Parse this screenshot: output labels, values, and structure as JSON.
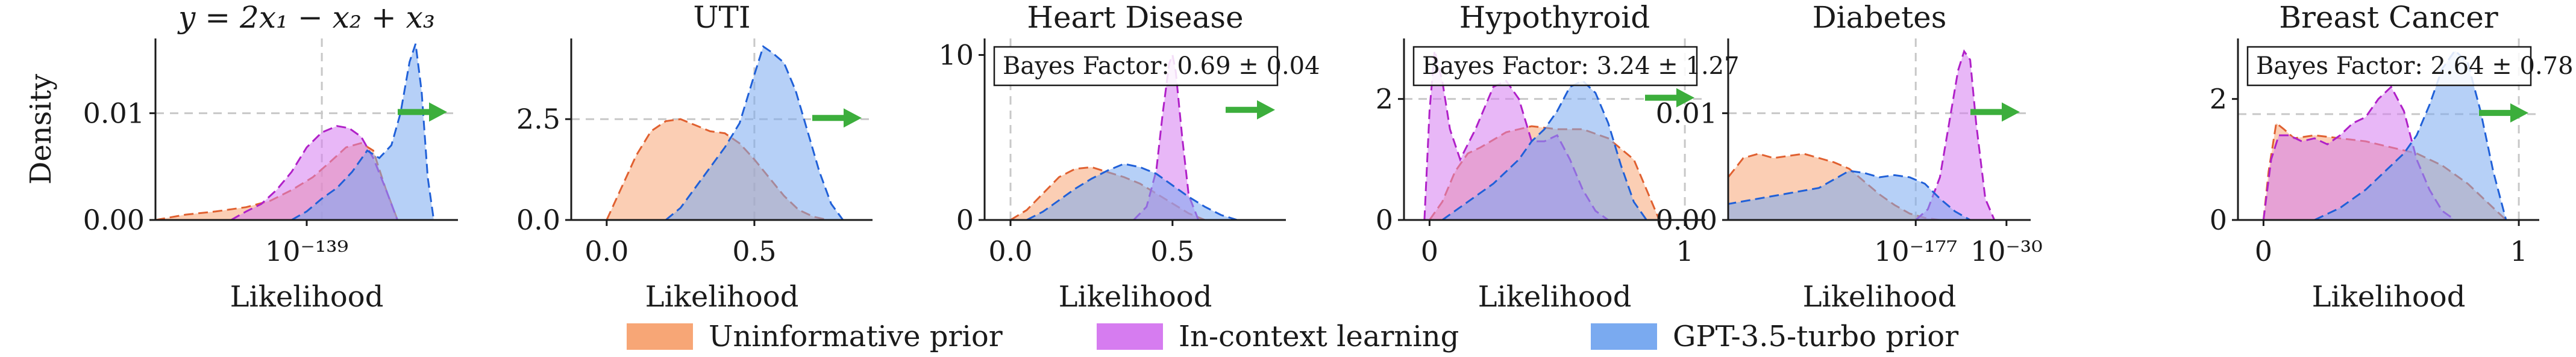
{
  "legend": {
    "placement": "bottom-center",
    "items": [
      {
        "name": "Uninformative prior",
        "color": "#f7a676"
      },
      {
        "name": "In-context learning",
        "color": "#d67cf0"
      },
      {
        "name": "GPT-3.5-turbo prior",
        "color": "#7aaaf0"
      }
    ]
  },
  "colors": {
    "uninformative": "#f7a676",
    "uninformative_line": "#e06030",
    "icl": "#d67cf0",
    "icl_line": "#b020c8",
    "gpt": "#7aaaf0",
    "gpt_line": "#2060d8",
    "arrow": "#3cae3c",
    "grid": "#c8c8c8"
  },
  "chart_data": [
    {
      "type": "area",
      "title": "y = 2x₁ − x₂ + x₃",
      "xlabel": "Likelihood",
      "ylabel": "Density",
      "x_scale": "log",
      "xlim": [
        0,
        1
      ],
      "ylim": [
        0,
        0.017
      ],
      "xticks": [
        {
          "value": 0.5,
          "label": "10⁻¹³⁹"
        }
      ],
      "yticks": [
        {
          "value": 0,
          "label": "0.00"
        },
        {
          "value": 0.01,
          "label": "0.01"
        }
      ],
      "reference_lines": {
        "x": 0.55,
        "y": 0.01
      },
      "arrow": "right",
      "bayes_factor": null,
      "series": [
        {
          "name": "Uninformative prior",
          "x": [
            0,
            0.1,
            0.2,
            0.3,
            0.38,
            0.45,
            0.52,
            0.58,
            0.63,
            0.68,
            0.72,
            0.76,
            0.8
          ],
          "y": [
            0,
            0.0005,
            0.0008,
            0.0012,
            0.0018,
            0.0028,
            0.004,
            0.0055,
            0.0068,
            0.0072,
            0.0065,
            0.003,
            0
          ]
        },
        {
          "name": "In-context learning",
          "x": [
            0.25,
            0.3,
            0.35,
            0.4,
            0.45,
            0.5,
            0.55,
            0.6,
            0.64,
            0.68,
            0.72,
            0.76,
            0.8
          ],
          "y": [
            0,
            0.0008,
            0.0015,
            0.0028,
            0.0045,
            0.0068,
            0.0082,
            0.0088,
            0.0086,
            0.0078,
            0.0058,
            0.003,
            0
          ]
        },
        {
          "name": "GPT-3.5-turbo prior",
          "x": [
            0.45,
            0.5,
            0.55,
            0.6,
            0.65,
            0.7,
            0.74,
            0.78,
            0.81,
            0.84,
            0.86,
            0.88,
            0.9,
            0.92
          ],
          "y": [
            0,
            0.0008,
            0.002,
            0.003,
            0.0045,
            0.0065,
            0.0058,
            0.007,
            0.01,
            0.0148,
            0.0165,
            0.012,
            0.004,
            0
          ]
        }
      ]
    },
    {
      "type": "area",
      "title": "UTI",
      "xlabel": "Likelihood",
      "ylabel": "",
      "xlim": [
        -0.12,
        0.9
      ],
      "ylim": [
        0,
        4.5
      ],
      "xticks": [
        {
          "value": 0,
          "label": "0.0"
        },
        {
          "value": 0.5,
          "label": "0.5"
        }
      ],
      "yticks": [
        {
          "value": 0,
          "label": "0.0"
        },
        {
          "value": 2.5,
          "label": "2.5"
        }
      ],
      "reference_lines": {
        "x": 0.5,
        "y": 2.5
      },
      "arrow": "right",
      "bayes_factor": null,
      "series": [
        {
          "name": "Uninformative prior",
          "x": [
            0.0,
            0.05,
            0.1,
            0.15,
            0.2,
            0.25,
            0.3,
            0.35,
            0.4,
            0.45,
            0.5,
            0.55,
            0.6,
            0.65,
            0.7,
            0.75
          ],
          "y": [
            0,
            0.8,
            1.6,
            2.2,
            2.45,
            2.5,
            2.35,
            2.2,
            2.15,
            1.9,
            1.5,
            1.05,
            0.6,
            0.25,
            0.08,
            0
          ]
        },
        {
          "name": "GPT-3.5-turbo prior",
          "x": [
            0.2,
            0.25,
            0.3,
            0.35,
            0.4,
            0.45,
            0.5,
            0.53,
            0.56,
            0.6,
            0.64,
            0.68,
            0.72,
            0.76,
            0.8
          ],
          "y": [
            0,
            0.3,
            0.8,
            1.3,
            1.8,
            2.4,
            3.6,
            4.3,
            4.15,
            3.9,
            3.2,
            2.2,
            1.2,
            0.4,
            0
          ]
        }
      ]
    },
    {
      "type": "area",
      "title": "Heart Disease",
      "xlabel": "Likelihood",
      "ylabel": "",
      "xlim": [
        -0.08,
        0.85
      ],
      "ylim": [
        0,
        11
      ],
      "xticks": [
        {
          "value": 0,
          "label": "0.0"
        },
        {
          "value": 0.5,
          "label": "0.5"
        }
      ],
      "yticks": [
        {
          "value": 0,
          "label": "0"
        },
        {
          "value": 10,
          "label": "10"
        }
      ],
      "reference_lines": {
        "x": 0,
        "y": null
      },
      "arrow": "right",
      "bayes_factor": "Bayes Factor: 0.69 ± 0.04",
      "series": [
        {
          "name": "Uninformative prior",
          "x": [
            0.0,
            0.05,
            0.1,
            0.15,
            0.2,
            0.25,
            0.3,
            0.35,
            0.4,
            0.45,
            0.5,
            0.55,
            0.6
          ],
          "y": [
            0,
            0.6,
            1.6,
            2.6,
            3.1,
            3.2,
            2.9,
            2.6,
            2.2,
            1.6,
            1.0,
            0.4,
            0
          ]
        },
        {
          "name": "In-context learning",
          "x": [
            0.38,
            0.42,
            0.45,
            0.47,
            0.49,
            0.5,
            0.51,
            0.53,
            0.55,
            0.58
          ],
          "y": [
            0,
            0.8,
            3,
            6.5,
            9.5,
            10,
            9,
            5,
            1.5,
            0
          ]
        },
        {
          "name": "GPT-3.5-turbo prior",
          "x": [
            0.05,
            0.1,
            0.15,
            0.2,
            0.25,
            0.3,
            0.35,
            0.4,
            0.45,
            0.5,
            0.55,
            0.6,
            0.65,
            0.7
          ],
          "y": [
            0,
            0.5,
            1.2,
            1.9,
            2.5,
            3.0,
            3.4,
            3.2,
            2.8,
            2.1,
            1.4,
            0.8,
            0.3,
            0
          ]
        }
      ]
    },
    {
      "type": "area",
      "title": "Hypothyroid",
      "xlabel": "Likelihood",
      "ylabel": "",
      "xlim": [
        -0.1,
        1.08
      ],
      "ylim": [
        0,
        3
      ],
      "xticks": [
        {
          "value": 0,
          "label": "0"
        },
        {
          "value": 1,
          "label": "1"
        }
      ],
      "yticks": [
        {
          "value": 0,
          "label": "0"
        },
        {
          "value": 2,
          "label": "2"
        }
      ],
      "reference_lines": {
        "x": 1.0,
        "y": 2.0
      },
      "arrow": "right",
      "bayes_factor": "Bayes Factor: 3.24 ± 1.27",
      "series": [
        {
          "name": "Uninformative prior",
          "x": [
            0.0,
            0.05,
            0.1,
            0.15,
            0.2,
            0.3,
            0.4,
            0.5,
            0.6,
            0.7,
            0.8,
            0.85,
            0.9
          ],
          "y": [
            0,
            0.3,
            0.8,
            1.1,
            1.2,
            1.45,
            1.55,
            1.5,
            1.5,
            1.35,
            1.0,
            0.5,
            0
          ]
        },
        {
          "name": "In-context learning",
          "x": [
            -0.02,
            0.0,
            0.02,
            0.05,
            0.08,
            0.12,
            0.18,
            0.25,
            0.3,
            0.35,
            0.4,
            0.45,
            0.5,
            0.55,
            0.6,
            0.65,
            0.7
          ],
          "y": [
            0,
            1.8,
            2.8,
            2.3,
            1.5,
            1.0,
            1.5,
            2.2,
            2.3,
            2.0,
            1.3,
            1.3,
            1.4,
            1.0,
            0.5,
            0.15,
            0
          ]
        },
        {
          "name": "GPT-3.5-turbo prior",
          "x": [
            0.05,
            0.15,
            0.25,
            0.35,
            0.4,
            0.45,
            0.5,
            0.55,
            0.6,
            0.65,
            0.7,
            0.75,
            0.8,
            0.85
          ],
          "y": [
            0,
            0.3,
            0.6,
            1.0,
            1.3,
            1.5,
            1.8,
            2.2,
            2.3,
            2.1,
            1.6,
            0.9,
            0.3,
            0
          ]
        }
      ]
    },
    {
      "type": "area",
      "title": "Diabetes",
      "xlabel": "Likelihood",
      "ylabel": "",
      "x_scale": "log",
      "xlim": [
        0,
        1
      ],
      "ylim": [
        0,
        0.017
      ],
      "xticks": [
        {
          "value": 0.62,
          "label": "10⁻¹⁷⁷"
        },
        {
          "value": 0.92,
          "label": "10⁻³⁰"
        }
      ],
      "yticks": [
        {
          "value": 0,
          "label": "0.00"
        },
        {
          "value": 0.01,
          "label": "0.01"
        }
      ],
      "reference_lines": {
        "x": 0.62,
        "y": 0.01
      },
      "arrow": "right",
      "bayes_factor": null,
      "series": [
        {
          "name": "Uninformative prior",
          "x": [
            0.0,
            0.05,
            0.1,
            0.15,
            0.2,
            0.25,
            0.3,
            0.35,
            0.4,
            0.45,
            0.5,
            0.55,
            0.6,
            0.65,
            0.7
          ],
          "y": [
            0.004,
            0.0058,
            0.0062,
            0.0058,
            0.006,
            0.0062,
            0.0058,
            0.0054,
            0.0048,
            0.0036,
            0.0024,
            0.0014,
            0.0006,
            0.0002,
            0
          ]
        },
        {
          "name": "In-context learning",
          "x": [
            0.62,
            0.66,
            0.7,
            0.73,
            0.76,
            0.78,
            0.8,
            0.82,
            0.85,
            0.88
          ],
          "y": [
            0,
            0.001,
            0.004,
            0.009,
            0.014,
            0.0158,
            0.015,
            0.009,
            0.002,
            0
          ]
        },
        {
          "name": "GPT-3.5-turbo prior",
          "x": [
            0.0,
            0.1,
            0.2,
            0.3,
            0.35,
            0.4,
            0.45,
            0.5,
            0.55,
            0.6,
            0.65,
            0.7,
            0.75,
            0.8
          ],
          "y": [
            0.0015,
            0.002,
            0.0025,
            0.003,
            0.0038,
            0.0046,
            0.0044,
            0.004,
            0.0042,
            0.004,
            0.0034,
            0.002,
            0.0008,
            0
          ]
        }
      ]
    },
    {
      "type": "area",
      "title": "Breast Cancer",
      "xlabel": "Likelihood",
      "ylabel": "",
      "xlim": [
        -0.1,
        1.08
      ],
      "ylim": [
        0,
        3
      ],
      "xticks": [
        {
          "value": 0,
          "label": "0"
        },
        {
          "value": 1,
          "label": "1"
        }
      ],
      "yticks": [
        {
          "value": 0,
          "label": "0"
        },
        {
          "value": 2,
          "label": "2"
        }
      ],
      "reference_lines": {
        "x": 1.0,
        "y": 1.75
      },
      "arrow": "right",
      "bayes_factor": "Bayes Factor: 2.64 ± 0.78",
      "series": [
        {
          "name": "Uninformative prior",
          "x": [
            0.0,
            0.02,
            0.05,
            0.08,
            0.12,
            0.2,
            0.3,
            0.4,
            0.5,
            0.6,
            0.7,
            0.8,
            0.9,
            0.95
          ],
          "y": [
            0,
            0.8,
            1.6,
            1.5,
            1.35,
            1.4,
            1.35,
            1.3,
            1.2,
            1.1,
            0.9,
            0.6,
            0.2,
            0
          ]
        },
        {
          "name": "In-context learning",
          "x": [
            0.0,
            0.03,
            0.06,
            0.1,
            0.15,
            0.2,
            0.25,
            0.3,
            0.35,
            0.4,
            0.45,
            0.5,
            0.55,
            0.6,
            0.65,
            0.7,
            0.75
          ],
          "y": [
            0,
            1.0,
            1.4,
            1.4,
            1.3,
            1.35,
            1.25,
            1.4,
            1.6,
            1.7,
            2.0,
            2.2,
            1.8,
            1.0,
            0.5,
            0.15,
            0
          ]
        },
        {
          "name": "GPT-3.5-turbo prior",
          "x": [
            0.2,
            0.3,
            0.4,
            0.45,
            0.5,
            0.55,
            0.6,
            0.65,
            0.7,
            0.75,
            0.8,
            0.85,
            0.9,
            0.95
          ],
          "y": [
            0,
            0.2,
            0.5,
            0.7,
            0.9,
            1.1,
            1.4,
            1.9,
            2.5,
            2.8,
            2.6,
            1.8,
            0.8,
            0
          ]
        }
      ]
    }
  ]
}
